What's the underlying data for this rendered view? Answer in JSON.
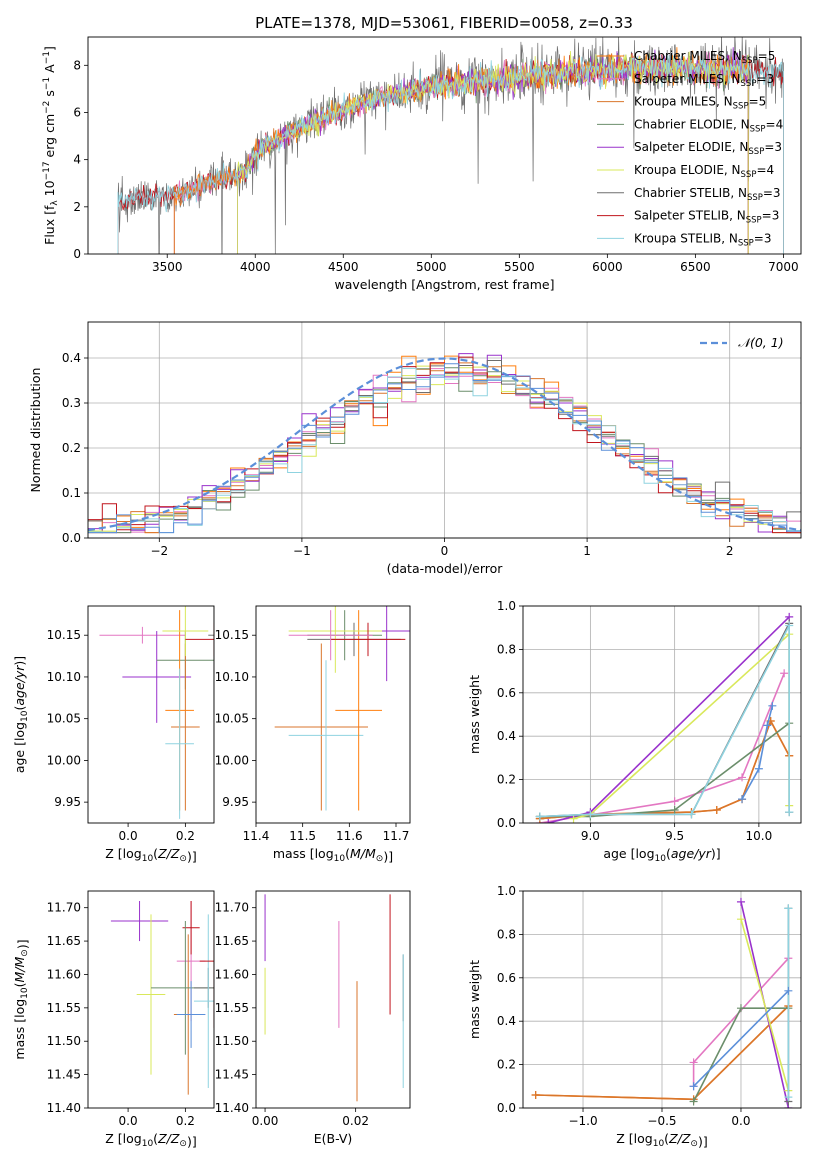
{
  "figure_title": "PLATE=1378, MJD=53061, FIBERID=0058, z=0.33",
  "colors": {
    "series": [
      "#ff7f0e",
      "#e377c2",
      "#d9762c",
      "#6b8e6b",
      "#9932cc",
      "#d9e85b",
      "#6e6e6e",
      "#c0141c",
      "#8fd3e0"
    ],
    "gauss": "#5b8fd9",
    "blue": "#5b8fd9",
    "pink": "#e58ac9"
  },
  "chart_data": [
    {
      "id": "spectrum",
      "type": "line",
      "title": "PLATE=1378, MJD=53061, FIBERID=0058, z=0.33",
      "xlabel": "wavelength [Angstrom, rest frame]",
      "ylabel": "Flux [f_λ 10^-17 erg cm^-2 s^-1 A^-1]",
      "xlim": [
        3050,
        7100
      ],
      "ylim": [
        0,
        9.2
      ],
      "xticks": [
        3500,
        4000,
        4500,
        5000,
        5500,
        6000,
        6500,
        7000
      ],
      "yticks": [
        0,
        2,
        4,
        6,
        8
      ],
      "grid": false,
      "legend_position": "right",
      "series": [
        {
          "name": "Chabrier MILES, N_SSP=5",
          "range": [
            3540,
            6800
          ]
        },
        {
          "name": "Salpeter MILES, N_SSP=3",
          "range": [
            3540,
            6800
          ]
        },
        {
          "name": "Kroupa MILES, N_SSP=5",
          "range": [
            3540,
            6800
          ]
        },
        {
          "name": "Chabrier ELODIE, N_SSP=4",
          "range": [
            3900,
            6800
          ]
        },
        {
          "name": "Salpeter ELODIE, N_SSP=3",
          "range": [
            3900,
            6800
          ]
        },
        {
          "name": "Kroupa ELODIE, N_SSP=4",
          "range": [
            3900,
            6800
          ]
        },
        {
          "name": "Chabrier STELIB, N_SSP=3",
          "range": [
            3220,
            7000
          ]
        },
        {
          "name": "Salpeter STELIB, N_SSP=3",
          "range": [
            3220,
            7000
          ]
        },
        {
          "name": "Kroupa STELIB, N_SSP=3",
          "range": [
            3220,
            7000
          ]
        }
      ],
      "continuum": {
        "x": [
          3220,
          3300,
          3400,
          3500,
          3600,
          3700,
          3800,
          3900,
          3950,
          4000,
          4100,
          4200,
          4300,
          4400,
          4500,
          4600,
          4700,
          4800,
          4900,
          5000,
          5100,
          5200,
          5300,
          5400,
          5500,
          5600,
          5700,
          5800,
          5900,
          6000,
          6200,
          6400,
          6600,
          6800,
          7000
        ],
        "y": [
          2.3,
          2.35,
          2.45,
          2.5,
          2.6,
          2.9,
          3.2,
          3.4,
          3.5,
          4.3,
          4.7,
          5.2,
          5.5,
          5.8,
          6.1,
          6.4,
          6.6,
          6.8,
          6.9,
          7.1,
          7.2,
          7.3,
          7.4,
          7.4,
          7.5,
          7.6,
          7.6,
          7.7,
          7.7,
          7.8,
          7.9,
          7.9,
          7.8,
          7.8,
          7.7
        ]
      }
    },
    {
      "id": "residuals",
      "type": "step",
      "xlabel": "(data-model)/error",
      "ylabel": "Normed distribution",
      "xlim": [
        -2.5,
        2.5
      ],
      "ylim": [
        0,
        0.48
      ],
      "xticks": [
        -2,
        -1,
        0,
        1,
        2
      ],
      "yticks": [
        0.0,
        0.1,
        0.2,
        0.3,
        0.4
      ],
      "grid": true,
      "legend": "𝒩(0, 1)",
      "legend_position": "top-right",
      "bins": 50
    },
    {
      "id": "age_vs_Z",
      "type": "errorbar",
      "xlabel": "Z [log10(Z/Z⊙)]",
      "ylabel": "age [log10(age/yr)]",
      "xlim": [
        -0.14,
        0.3
      ],
      "ylim": [
        9.925,
        10.185
      ],
      "xticks": [
        0.0,
        0.2
      ],
      "yticks": [
        9.95,
        10.0,
        10.05,
        10.1,
        10.15
      ],
      "points": [
        {
          "x": 0.05,
          "y": 10.15,
          "xe": 0.15,
          "ye": 0.01,
          "c": 1
        },
        {
          "x": 0.1,
          "y": 10.1,
          "xe": 0.12,
          "ye": 0.055,
          "c": 4
        },
        {
          "x": 0.2,
          "y": 10.12,
          "xe": 0.1,
          "ye": 0.035,
          "c": 3
        },
        {
          "x": 0.2,
          "y": 10.04,
          "xe": 0.05,
          "ye": 0.1,
          "c": 2
        },
        {
          "x": 0.18,
          "y": 10.06,
          "xe": 0.05,
          "ye": 0.12,
          "c": 0
        },
        {
          "x": 0.18,
          "y": 10.02,
          "xe": 0.05,
          "ye": 0.09,
          "c": 8
        },
        {
          "x": 0.2,
          "y": 10.155,
          "xe": 0.08,
          "ye": 0.03,
          "c": 5
        },
        {
          "x": 0.3,
          "y": 10.15,
          "xe": 0.02,
          "ye": 0.15,
          "c": 6
        },
        {
          "x": 0.3,
          "y": 10.145,
          "xe": 0.1,
          "ye": 0.02,
          "c": 7
        }
      ]
    },
    {
      "id": "age_vs_mass",
      "type": "errorbar",
      "xlabel": "mass [log10(M/M⊙)]",
      "ylabel": "",
      "xlim": [
        11.4,
        11.73
      ],
      "ylim": [
        9.925,
        10.185
      ],
      "xticks": [
        11.4,
        11.5,
        11.6,
        11.7
      ],
      "yticks": [
        9.95,
        10.0,
        10.05,
        10.1,
        10.15
      ],
      "points": [
        {
          "x": 11.54,
          "y": 10.04,
          "xe": 0.1,
          "ye": 0.1,
          "c": 2
        },
        {
          "x": 11.55,
          "y": 10.03,
          "xe": 0.08,
          "ye": 0.09,
          "c": 8
        },
        {
          "x": 11.62,
          "y": 10.06,
          "xe": 0.05,
          "ye": 0.12,
          "c": 0
        },
        {
          "x": 11.68,
          "y": 10.155,
          "xe": 0.05,
          "ye": 0.06,
          "c": 4
        },
        {
          "x": 11.61,
          "y": 10.145,
          "xe": 0.1,
          "ye": 0.02,
          "c": 6
        },
        {
          "x": 11.59,
          "y": 10.15,
          "xe": 0.08,
          "ye": 0.03,
          "c": 3
        },
        {
          "x": 11.57,
          "y": 10.155,
          "xe": 0.1,
          "ye": 0.05,
          "c": 5
        },
        {
          "x": 11.64,
          "y": 10.145,
          "xe": 0.08,
          "ye": 0.02,
          "c": 7
        },
        {
          "x": 11.56,
          "y": 10.15,
          "xe": 0.09,
          "ye": 0.03,
          "c": 1
        }
      ]
    },
    {
      "id": "weight_vs_age",
      "type": "line",
      "xlabel": "age [log10(age/yr)]",
      "ylabel": "mass weight",
      "xlim": [
        8.6,
        10.25
      ],
      "ylim": [
        0,
        1.0
      ],
      "xticks": [
        9.0,
        9.5,
        10.0
      ],
      "yticks": [
        0.0,
        0.2,
        0.4,
        0.6,
        0.8,
        1.0
      ],
      "grid": true,
      "series": [
        {
          "c": 0,
          "x": [
            8.7,
            9.0,
            9.6,
            9.75,
            9.9,
            10.07,
            10.18
          ],
          "y": [
            0.02,
            0.04,
            0.05,
            0.06,
            0.11,
            0.47,
            0.31
          ]
        },
        {
          "c": 1,
          "x": [
            8.7,
            9.5,
            9.9,
            10.15
          ],
          "y": [
            0.0,
            0.1,
            0.21,
            0.69
          ]
        },
        {
          "c": 2,
          "x": [
            8.7,
            9.0,
            9.6,
            9.75,
            9.9,
            10.07,
            10.18
          ],
          "y": [
            0.02,
            0.04,
            0.05,
            0.06,
            0.11,
            0.47,
            0.31
          ]
        },
        {
          "c": 3,
          "x": [
            8.7,
            9.0,
            9.5,
            10.18
          ],
          "y": [
            0.03,
            0.03,
            0.06,
            0.46
          ]
        },
        {
          "c": 4,
          "x": [
            8.75,
            9.0,
            10.18
          ],
          "y": [
            0.0,
            0.05,
            0.95
          ]
        },
        {
          "c": 5,
          "x": [
            8.9,
            9.0,
            10.18,
            10.18
          ],
          "y": [
            0.02,
            0.04,
            0.87,
            0.08
          ]
        },
        {
          "c": 6,
          "x": [
            8.7,
            9.0,
            9.6,
            10.18,
            10.18
          ],
          "y": [
            0.03,
            0.04,
            0.04,
            0.92,
            0.05
          ]
        },
        {
          "c": 8,
          "x": [
            8.7,
            9.0,
            9.6,
            10.18,
            10.18
          ],
          "y": [
            0.03,
            0.04,
            0.04,
            0.91,
            0.05
          ]
        },
        {
          "c": "blue",
          "x": [
            9.9,
            10.0,
            10.05,
            10.08
          ],
          "y": [
            0.11,
            0.25,
            0.45,
            0.54
          ]
        }
      ]
    },
    {
      "id": "mass_vs_Z",
      "type": "errorbar",
      "xlabel": "Z [log10(Z/Z⊙)]",
      "ylabel": "mass [log10(M/M⊙)]",
      "xlim": [
        -0.14,
        0.3
      ],
      "ylim": [
        11.4,
        11.725
      ],
      "xticks": [
        0.0,
        0.2
      ],
      "yticks": [
        11.4,
        11.45,
        11.5,
        11.55,
        11.6,
        11.65,
        11.7
      ],
      "points": [
        {
          "x": 0.04,
          "y": 11.68,
          "xe": 0.1,
          "ye": 0.03,
          "c": 4
        },
        {
          "x": 0.08,
          "y": 11.57,
          "xe": 0.05,
          "ye": 0.12,
          "c": 5
        },
        {
          "x": 0.22,
          "y": 11.62,
          "xe": 0.05,
          "ye": 0.09,
          "c": 1
        },
        {
          "x": 0.22,
          "y": 11.67,
          "xe": 0.03,
          "ye": 0.04,
          "c": 7
        },
        {
          "x": 0.21,
          "y": 11.54,
          "xe": 0.05,
          "ye": 0.12,
          "c": 2
        },
        {
          "x": 0.2,
          "y": 11.58,
          "xe": 0.12,
          "ye": 0.1,
          "c": 3
        },
        {
          "x": 0.22,
          "y": 11.54,
          "xe": 0.05,
          "ye": 0.05,
          "c": "blue"
        },
        {
          "x": 0.28,
          "y": 11.58,
          "xe": 0.05,
          "ye": 0.03,
          "c": 6
        },
        {
          "x": 0.28,
          "y": 11.56,
          "xe": 0.05,
          "ye": 0.13,
          "c": 8
        },
        {
          "x": 0.3,
          "y": 11.62,
          "xe": 0.05,
          "ye": 0.1,
          "c": 7
        }
      ]
    },
    {
      "id": "mass_vs_ebv",
      "type": "errorbar",
      "xlabel": "E(B-V)",
      "ylabel": "",
      "xlim": [
        -0.002,
        0.032
      ],
      "ylim": [
        11.4,
        11.725
      ],
      "xticks": [
        0.0,
        0.02
      ],
      "yticks": [
        11.4,
        11.45,
        11.5,
        11.55,
        11.6,
        11.65,
        11.7
      ],
      "points": [
        {
          "x": 0.0,
          "y": 11.67,
          "xe": 0,
          "ye": 0.05,
          "c": 4
        },
        {
          "x": 0.0,
          "y": 11.56,
          "xe": 0,
          "ye": 0.05,
          "c": 5
        },
        {
          "x": 0.0163,
          "y": 11.6,
          "xe": 0,
          "ye": 0.08,
          "c": 1
        },
        {
          "x": 0.0203,
          "y": 11.5,
          "xe": 0,
          "ye": 0.09,
          "c": 2
        },
        {
          "x": 0.0276,
          "y": 11.63,
          "xe": 0,
          "ye": 0.09,
          "c": 7
        },
        {
          "x": 0.0305,
          "y": 11.58,
          "xe": 0,
          "ye": 0.05,
          "c": 6
        },
        {
          "x": 0.0305,
          "y": 11.53,
          "xe": 0,
          "ye": 0.1,
          "c": 8
        }
      ]
    },
    {
      "id": "weight_vs_Z",
      "type": "line",
      "xlabel": "Z [log10(Z/Z⊙)]",
      "ylabel": "mass weight",
      "xlim": [
        -1.38,
        0.38
      ],
      "ylim": [
        0,
        1.0
      ],
      "xticks": [
        -1.0,
        -0.5,
        0.0
      ],
      "yticks": [
        0.0,
        0.2,
        0.4,
        0.6,
        0.8,
        1.0
      ],
      "grid": true,
      "series": [
        {
          "c": 0,
          "x": [
            -1.3,
            -0.3,
            0.3
          ],
          "y": [
            0.06,
            0.04,
            0.47
          ]
        },
        {
          "c": 1,
          "x": [
            -0.3,
            -0.3,
            0.3
          ],
          "y": [
            0.1,
            0.21,
            0.69
          ]
        },
        {
          "c": 2,
          "x": [
            -1.3,
            -0.3,
            0.3
          ],
          "y": [
            0.06,
            0.04,
            0.47
          ]
        },
        {
          "c": 3,
          "x": [
            -0.3,
            0.0,
            0.3
          ],
          "y": [
            0.03,
            0.46,
            0.46
          ]
        },
        {
          "c": 4,
          "x": [
            0.0,
            0.3
          ],
          "y": [
            0.95,
            0.0
          ]
        },
        {
          "c": 5,
          "x": [
            0.0,
            0.3
          ],
          "y": [
            0.87,
            0.08
          ]
        },
        {
          "c": 6,
          "x": [
            0.3,
            0.3
          ],
          "y": [
            0.92,
            0.03
          ]
        },
        {
          "c": 8,
          "x": [
            0.3,
            0.3
          ],
          "y": [
            0.92,
            0.05
          ]
        },
        {
          "c": "blue",
          "x": [
            -0.3,
            0.3
          ],
          "y": [
            0.1,
            0.54
          ]
        }
      ]
    }
  ]
}
